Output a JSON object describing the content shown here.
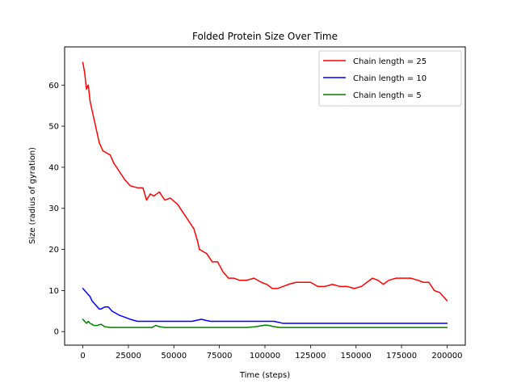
{
  "chart_data": {
    "type": "line",
    "title": "Folded Protein Size Over Time",
    "xlabel": "Time (steps)",
    "ylabel": "Size (radius of gyration)",
    "xlim": [
      -10000,
      210000
    ],
    "ylim": [
      -3.3,
      69.3
    ],
    "xticks": [
      0,
      25000,
      50000,
      75000,
      100000,
      125000,
      150000,
      175000,
      200000
    ],
    "yticks": [
      0,
      10,
      20,
      30,
      40,
      50,
      60
    ],
    "grid": false,
    "legend_position": "top-right",
    "series": [
      {
        "name": "Chain length = 25",
        "color": "#ff0000",
        "x": [
          0,
          1000,
          2000,
          3000,
          4000,
          5000,
          7000,
          9000,
          11000,
          13000,
          15000,
          17000,
          20000,
          23000,
          26000,
          30000,
          33000,
          35000,
          37000,
          39000,
          42000,
          45000,
          48000,
          52000,
          55000,
          58000,
          61000,
          63000,
          64000,
          66000,
          68000,
          71000,
          74000,
          77000,
          80000,
          83000,
          86000,
          90000,
          94000,
          98000,
          101000,
          104000,
          107000,
          110000,
          113000,
          117000,
          121000,
          125000,
          129000,
          133000,
          137000,
          141000,
          145000,
          149000,
          153000,
          156000,
          159000,
          162000,
          165000,
          168000,
          172000,
          176000,
          180000,
          184000,
          187000,
          190000,
          193000,
          196000,
          198000,
          200000
        ],
        "y": [
          65.5,
          63,
          59,
          60,
          56,
          54,
          50,
          46,
          44,
          43.5,
          43,
          41,
          39,
          37,
          35.5,
          35,
          35,
          32,
          33.5,
          33,
          34,
          32,
          32.5,
          31,
          29,
          27,
          25,
          22,
          20,
          19.5,
          19,
          17,
          17,
          14.5,
          13,
          13,
          12.5,
          12.5,
          13,
          12,
          11.5,
          10.5,
          10.5,
          11,
          11.5,
          12,
          12,
          12,
          11,
          11,
          11.5,
          11,
          11,
          10.5,
          11,
          12,
          13,
          12.5,
          11.5,
          12.5,
          13,
          13,
          13,
          12.5,
          12,
          12,
          10,
          9.5,
          8.5,
          7.5
        ]
      },
      {
        "name": "Chain length = 10",
        "color": "#0000ff",
        "x": [
          0,
          1000,
          2000,
          3000,
          4000,
          5000,
          6000,
          7000,
          8000,
          9000,
          10000,
          12000,
          14000,
          16000,
          18000,
          20000,
          23000,
          26000,
          30000,
          35000,
          40000,
          45000,
          50000,
          55000,
          60000,
          65000,
          70000,
          75000,
          80000,
          85000,
          90000,
          95000,
          100000,
          105000,
          110000,
          120000,
          130000,
          140000,
          150000,
          160000,
          170000,
          180000,
          190000,
          200000
        ],
        "y": [
          10.5,
          10,
          9.5,
          9,
          8.5,
          7.5,
          7,
          6.5,
          6,
          5.5,
          5.5,
          6,
          6,
          5,
          4.5,
          4,
          3.5,
          3,
          2.5,
          2.5,
          2.5,
          2.5,
          2.5,
          2.5,
          2.5,
          3,
          2.5,
          2.5,
          2.5,
          2.5,
          2.5,
          2.5,
          2.5,
          2.5,
          2,
          2,
          2,
          2,
          2,
          2,
          2,
          2,
          2,
          2
        ]
      },
      {
        "name": "Chain length = 5",
        "color": "#008000",
        "x": [
          0,
          1000,
          2000,
          3000,
          4000,
          5000,
          6000,
          8000,
          10000,
          12000,
          15000,
          20000,
          30000,
          38000,
          40000,
          42000,
          45000,
          50000,
          60000,
          70000,
          80000,
          90000,
          95000,
          99000,
          100000,
          102000,
          105000,
          108000,
          115000,
          130000,
          150000,
          170000,
          190000,
          200000
        ],
        "y": [
          3,
          2.5,
          2,
          2.5,
          2,
          1.8,
          1.5,
          1.5,
          1.8,
          1.2,
          1,
          1,
          1,
          1,
          1.5,
          1.2,
          1,
          1,
          1,
          1,
          1,
          1,
          1.2,
          1.5,
          1.6,
          1.5,
          1.2,
          1,
          1,
          1,
          1,
          1,
          1,
          1
        ]
      }
    ]
  }
}
